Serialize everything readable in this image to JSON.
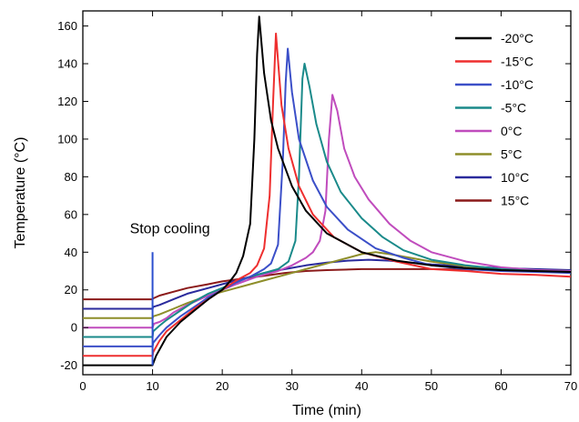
{
  "chart_data": {
    "type": "line",
    "xlabel": "Time (min)",
    "ylabel": "Temperature (°C)",
    "xlim": [
      0,
      70
    ],
    "ylim": [
      -25,
      168
    ],
    "x_ticks": [
      "0",
      "10",
      "20",
      "30",
      "40",
      "50",
      "60",
      "70"
    ],
    "y_ticks": [
      "-20",
      "0",
      "20",
      "40",
      "60",
      "80",
      "100",
      "120",
      "140",
      "160"
    ],
    "grid": false,
    "legend_position": "top-right",
    "annotation": {
      "text": "Stop cooling",
      "x": 10,
      "marker_y_range": [
        -20,
        40
      ],
      "marker_color": "#2b4fcf"
    },
    "series": [
      {
        "name": "-20°C",
        "color": "#000000",
        "points": [
          [
            0,
            -20
          ],
          [
            10,
            -20
          ],
          [
            10.1,
            -19
          ],
          [
            10.5,
            -15
          ],
          [
            12,
            -5
          ],
          [
            14,
            3
          ],
          [
            16,
            9
          ],
          [
            18,
            15
          ],
          [
            20,
            20
          ],
          [
            21,
            24
          ],
          [
            22,
            29
          ],
          [
            23,
            38
          ],
          [
            24,
            55
          ],
          [
            24.6,
            100
          ],
          [
            25,
            145
          ],
          [
            25.3,
            165
          ],
          [
            26,
            135
          ],
          [
            27,
            110
          ],
          [
            28,
            95
          ],
          [
            30,
            75
          ],
          [
            32,
            62
          ],
          [
            35,
            50
          ],
          [
            40,
            40
          ],
          [
            45,
            35.5
          ],
          [
            50,
            33
          ],
          [
            55,
            31.5
          ],
          [
            60,
            30.5
          ],
          [
            65,
            30
          ],
          [
            70,
            29.5
          ]
        ]
      },
      {
        "name": "-15°C",
        "color": "#ee2f2f",
        "points": [
          [
            0,
            -15
          ],
          [
            10,
            -15
          ],
          [
            10.1,
            -13
          ],
          [
            11,
            -7
          ],
          [
            12,
            -2
          ],
          [
            14,
            4
          ],
          [
            16,
            10
          ],
          [
            18,
            15
          ],
          [
            20,
            20
          ],
          [
            22,
            25
          ],
          [
            24,
            29
          ],
          [
            25,
            33
          ],
          [
            26,
            42
          ],
          [
            26.8,
            70
          ],
          [
            27.3,
            120
          ],
          [
            27.7,
            156
          ],
          [
            28.5,
            118
          ],
          [
            29.5,
            95
          ],
          [
            31,
            75
          ],
          [
            33,
            60
          ],
          [
            36,
            48
          ],
          [
            40,
            40
          ],
          [
            45,
            35
          ],
          [
            50,
            31
          ],
          [
            55,
            30
          ],
          [
            60,
            28.5
          ],
          [
            65,
            28
          ],
          [
            70,
            27
          ]
        ]
      },
      {
        "name": "-10°C",
        "color": "#3b4fc8",
        "points": [
          [
            0,
            -10
          ],
          [
            10,
            -10
          ],
          [
            10.1,
            -8
          ],
          [
            11,
            -4
          ],
          [
            12,
            0
          ],
          [
            14,
            6
          ],
          [
            16,
            11
          ],
          [
            18,
            16
          ],
          [
            20,
            20
          ],
          [
            22,
            24
          ],
          [
            24,
            27
          ],
          [
            26,
            31
          ],
          [
            27,
            34
          ],
          [
            28,
            44
          ],
          [
            28.7,
            90
          ],
          [
            29.1,
            130
          ],
          [
            29.4,
            148
          ],
          [
            30,
            125
          ],
          [
            31,
            100
          ],
          [
            33,
            78
          ],
          [
            35,
            64
          ],
          [
            38,
            52
          ],
          [
            42,
            42
          ],
          [
            46,
            37
          ],
          [
            50,
            33
          ],
          [
            55,
            31
          ],
          [
            60,
            30
          ],
          [
            65,
            29.5
          ],
          [
            70,
            29
          ]
        ]
      },
      {
        "name": "-5°C",
        "color": "#1a8a8a",
        "points": [
          [
            0,
            -5
          ],
          [
            10,
            -5
          ],
          [
            10.1,
            -2
          ],
          [
            11,
            1
          ],
          [
            12,
            4
          ],
          [
            14,
            9
          ],
          [
            16,
            14
          ],
          [
            18,
            18
          ],
          [
            20,
            21
          ],
          [
            22,
            24
          ],
          [
            24,
            27
          ],
          [
            26,
            29
          ],
          [
            28,
            31
          ],
          [
            29.5,
            35
          ],
          [
            30.5,
            46
          ],
          [
            31,
            80
          ],
          [
            31.5,
            132
          ],
          [
            31.8,
            140
          ],
          [
            32.5,
            128
          ],
          [
            33.5,
            108
          ],
          [
            35,
            88
          ],
          [
            37,
            72
          ],
          [
            40,
            58
          ],
          [
            43,
            48
          ],
          [
            46,
            41
          ],
          [
            50,
            36
          ],
          [
            55,
            33
          ],
          [
            60,
            31
          ],
          [
            65,
            30
          ],
          [
            70,
            29.5
          ]
        ]
      },
      {
        "name": "0°C",
        "color": "#c04cbd",
        "points": [
          [
            0,
            0
          ],
          [
            10,
            0
          ],
          [
            10.2,
            2
          ],
          [
            11,
            3
          ],
          [
            12,
            5
          ],
          [
            13,
            8
          ],
          [
            15,
            12
          ],
          [
            18,
            17
          ],
          [
            20,
            20
          ],
          [
            22,
            23
          ],
          [
            25,
            27
          ],
          [
            28,
            30
          ],
          [
            30,
            33
          ],
          [
            32,
            37
          ],
          [
            33,
            40
          ],
          [
            34,
            46
          ],
          [
            34.8,
            62
          ],
          [
            35.3,
            100
          ],
          [
            35.8,
            123.5
          ],
          [
            36.5,
            115
          ],
          [
            37.5,
            95
          ],
          [
            39,
            80
          ],
          [
            41,
            68
          ],
          [
            44,
            55
          ],
          [
            47,
            46
          ],
          [
            50,
            40
          ],
          [
            55,
            35
          ],
          [
            60,
            32
          ],
          [
            65,
            30.5
          ],
          [
            70,
            30
          ]
        ]
      },
      {
        "name": "5°C",
        "color": "#8e8e2a",
        "points": [
          [
            0,
            5
          ],
          [
            10,
            5
          ],
          [
            10.1,
            6
          ],
          [
            11,
            7
          ],
          [
            13,
            10
          ],
          [
            15,
            13
          ],
          [
            18,
            17
          ],
          [
            20,
            19
          ],
          [
            23,
            22
          ],
          [
            26,
            25
          ],
          [
            29,
            28
          ],
          [
            32,
            31
          ],
          [
            35,
            34
          ],
          [
            38,
            37
          ],
          [
            40,
            39
          ],
          [
            42,
            40
          ],
          [
            44,
            39
          ],
          [
            47,
            37
          ],
          [
            50,
            35
          ],
          [
            55,
            32.5
          ],
          [
            60,
            31
          ],
          [
            65,
            30.5
          ],
          [
            70,
            30
          ]
        ]
      },
      {
        "name": "10°C",
        "color": "#2a2a9c",
        "points": [
          [
            0,
            10
          ],
          [
            10,
            10
          ],
          [
            10.1,
            11
          ],
          [
            11,
            12
          ],
          [
            13,
            15
          ],
          [
            15,
            18
          ],
          [
            18,
            21
          ],
          [
            20,
            23
          ],
          [
            23,
            26
          ],
          [
            26,
            29
          ],
          [
            29,
            31
          ],
          [
            32,
            33
          ],
          [
            35,
            34.5
          ],
          [
            38,
            35.5
          ],
          [
            41,
            36
          ],
          [
            44,
            35.5
          ],
          [
            47,
            34.5
          ],
          [
            50,
            33.5
          ],
          [
            55,
            32.5
          ],
          [
            60,
            31.5
          ],
          [
            65,
            31
          ],
          [
            70,
            30.5
          ]
        ]
      },
      {
        "name": "15°C",
        "color": "#8b1a1a",
        "points": [
          [
            0,
            15
          ],
          [
            10,
            15
          ],
          [
            10.1,
            15.5
          ],
          [
            11,
            17
          ],
          [
            13,
            19
          ],
          [
            15,
            21
          ],
          [
            18,
            23
          ],
          [
            20,
            24.5
          ],
          [
            23,
            26
          ],
          [
            26,
            27.5
          ],
          [
            29,
            29
          ],
          [
            32,
            30
          ],
          [
            35,
            30.5
          ],
          [
            40,
            31
          ],
          [
            45,
            31
          ],
          [
            50,
            31
          ],
          [
            55,
            30.8
          ],
          [
            60,
            30.5
          ],
          [
            65,
            30.5
          ],
          [
            70,
            30.5
          ]
        ]
      }
    ]
  }
}
